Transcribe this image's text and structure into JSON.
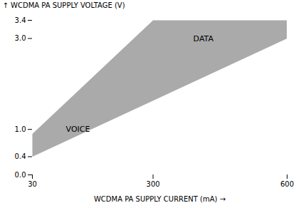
{
  "chart_data": {
    "type": "area",
    "x": [
      30,
      30,
      300,
      600,
      600,
      30
    ],
    "values": [
      0.4,
      0.9,
      3.4,
      3.4,
      3.0,
      0.4
    ],
    "color": "#aaaaaa",
    "xlabel": "WCDMA PA SUPPLY CURRENT (mA)",
    "ylabel": "WCDMA PA SUPPLY VOLTAGE (V)",
    "xlim": [
      30,
      600
    ],
    "ylim": [
      0.0,
      3.4
    ],
    "xticks": [
      30,
      300,
      600
    ],
    "yticks": [
      {
        "value": 0.0,
        "label": "0.0"
      },
      0.4,
      {
        "value": 1.0,
        "label": "1.0"
      },
      {
        "value": 3.0,
        "label": "3.0"
      },
      3.4
    ],
    "annotations": [
      {
        "text": "VOICE",
        "x": 105,
        "y": 1.0
      },
      {
        "text": "DATA",
        "x": 390,
        "y": 3.0
      }
    ],
    "grid": false
  }
}
